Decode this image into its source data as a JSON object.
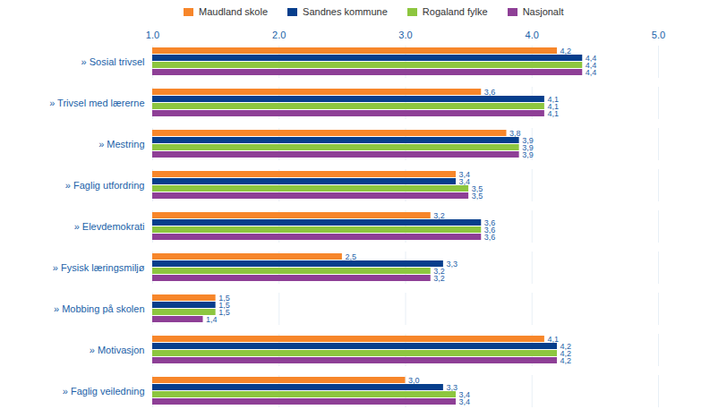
{
  "chart_data": {
    "type": "bar",
    "orientation": "horizontal",
    "categories": [
      "» Sosial trivsel",
      "» Trivsel med lærerne",
      "» Mestring",
      "» Faglig utfordring",
      "» Elevdemokrati",
      "» Fysisk læringsmiljø",
      "» Mobbing på skolen",
      "» Motivasjon",
      "» Faglig veiledning"
    ],
    "series": [
      {
        "name": "Maudland skole",
        "color": "#f7862a",
        "values": [
          4.2,
          3.6,
          3.8,
          3.4,
          3.2,
          2.5,
          1.5,
          4.1,
          3.0
        ],
        "value_labels": [
          "4,2",
          "3,6",
          "3,8",
          "3,4",
          "3,2",
          "2,5",
          "1,5",
          "4,1",
          "3,0"
        ]
      },
      {
        "name": "Sandnes kommune",
        "color": "#063e8c",
        "values": [
          4.4,
          4.1,
          3.9,
          3.4,
          3.6,
          3.3,
          1.5,
          4.2,
          3.3
        ],
        "value_labels": [
          "4,4",
          "4,1",
          "3,9",
          "3,4",
          "3,6",
          "3,3",
          "1,5",
          "4,2",
          "3,3"
        ]
      },
      {
        "name": "Rogaland fylke",
        "color": "#8dc63f",
        "values": [
          4.4,
          4.1,
          3.9,
          3.5,
          3.6,
          3.2,
          1.5,
          4.2,
          3.4
        ],
        "value_labels": [
          "4,4",
          "4,1",
          "3,9",
          "3,5",
          "3,6",
          "3,2",
          "1,5",
          "4,2",
          "3,4"
        ]
      },
      {
        "name": "Nasjonalt",
        "color": "#8e3f96",
        "values": [
          4.4,
          4.1,
          3.9,
          3.5,
          3.6,
          3.2,
          1.4,
          4.2,
          3.4
        ],
        "value_labels": [
          "4,4",
          "4,1",
          "3,9",
          "3,5",
          "3,6",
          "3,2",
          "1,4",
          "4,2",
          "3,4"
        ]
      }
    ],
    "xlim": [
      1,
      5
    ],
    "xticks": [
      1,
      2,
      3,
      4,
      5
    ],
    "grid": true,
    "data_labels": true,
    "legend": "top"
  }
}
